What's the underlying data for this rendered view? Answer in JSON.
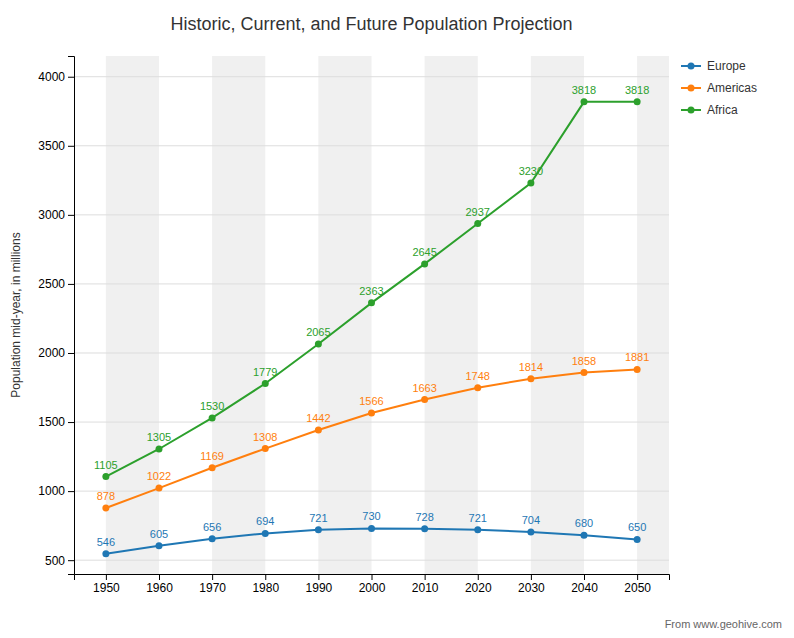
{
  "chart_data": {
    "type": "line",
    "title": "Historic, Current, and Future Population Projection",
    "ylabel": "Population mid-year, in millions",
    "annotations": [
      "From www.geohive.com"
    ],
    "x": [
      1950,
      1960,
      1970,
      1980,
      1990,
      2000,
      2010,
      2020,
      2030,
      2040,
      2050
    ],
    "series": [
      {
        "name": "Europe",
        "values": [
          546,
          605,
          656,
          694,
          721,
          730,
          728,
          721,
          704,
          680,
          650
        ]
      },
      {
        "name": "Americas",
        "values": [
          878,
          1022,
          1169,
          1308,
          1442,
          1566,
          1663,
          1748,
          1814,
          1858,
          1881
        ]
      },
      {
        "name": "Africa",
        "values": [
          1105,
          1305,
          1530,
          1779,
          2065,
          2363,
          2645,
          2937,
          3230,
          3818,
          3818
        ]
      }
    ],
    "xlim": [
      1944,
      2056
    ],
    "xticks": [
      1950,
      1960,
      1970,
      1980,
      1990,
      2000,
      2010,
      2020,
      2030,
      2040,
      2050
    ],
    "ylim": [
      400,
      4150
    ],
    "yticks": [
      500,
      1000,
      1500,
      2000,
      2500,
      3000,
      3500,
      4000
    ],
    "grid": true,
    "legend": "upper right",
    "data_labels": true,
    "marker": "circle"
  }
}
